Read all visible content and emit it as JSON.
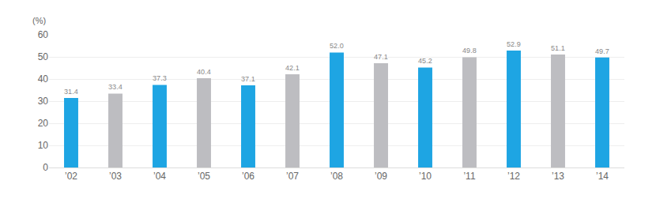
{
  "chart_data": {
    "type": "bar",
    "y_label": "(%)",
    "categories": [
      "’02",
      "’03",
      "’04",
      "’05",
      "’06",
      "’07",
      "’08",
      "’09",
      "’10",
      "’11",
      "’12",
      "’13",
      "’14"
    ],
    "values": [
      31.4,
      33.4,
      37.3,
      40.4,
      37.1,
      42.1,
      52.0,
      47.1,
      45.2,
      49.8,
      52.9,
      51.1,
      49.7
    ],
    "value_labels": [
      "31.4",
      "33.4",
      "37.3",
      "40.4",
      "37.1",
      "42.1",
      "52.0",
      "47.1",
      "45.2",
      "49.8",
      "52.9",
      "51.1",
      "49.7"
    ],
    "colors": [
      "#1ea5e3",
      "#bdbdc1",
      "#1ea5e3",
      "#bdbdc1",
      "#1ea5e3",
      "#bdbdc1",
      "#1ea5e3",
      "#bdbdc1",
      "#1ea5e3",
      "#bdbdc1",
      "#1ea5e3",
      "#bdbdc1",
      "#1ea5e3"
    ],
    "ylim": [
      0,
      60
    ],
    "yticks": [
      0,
      10,
      20,
      30,
      40,
      50,
      60
    ],
    "grid": true,
    "data_labels": true
  }
}
